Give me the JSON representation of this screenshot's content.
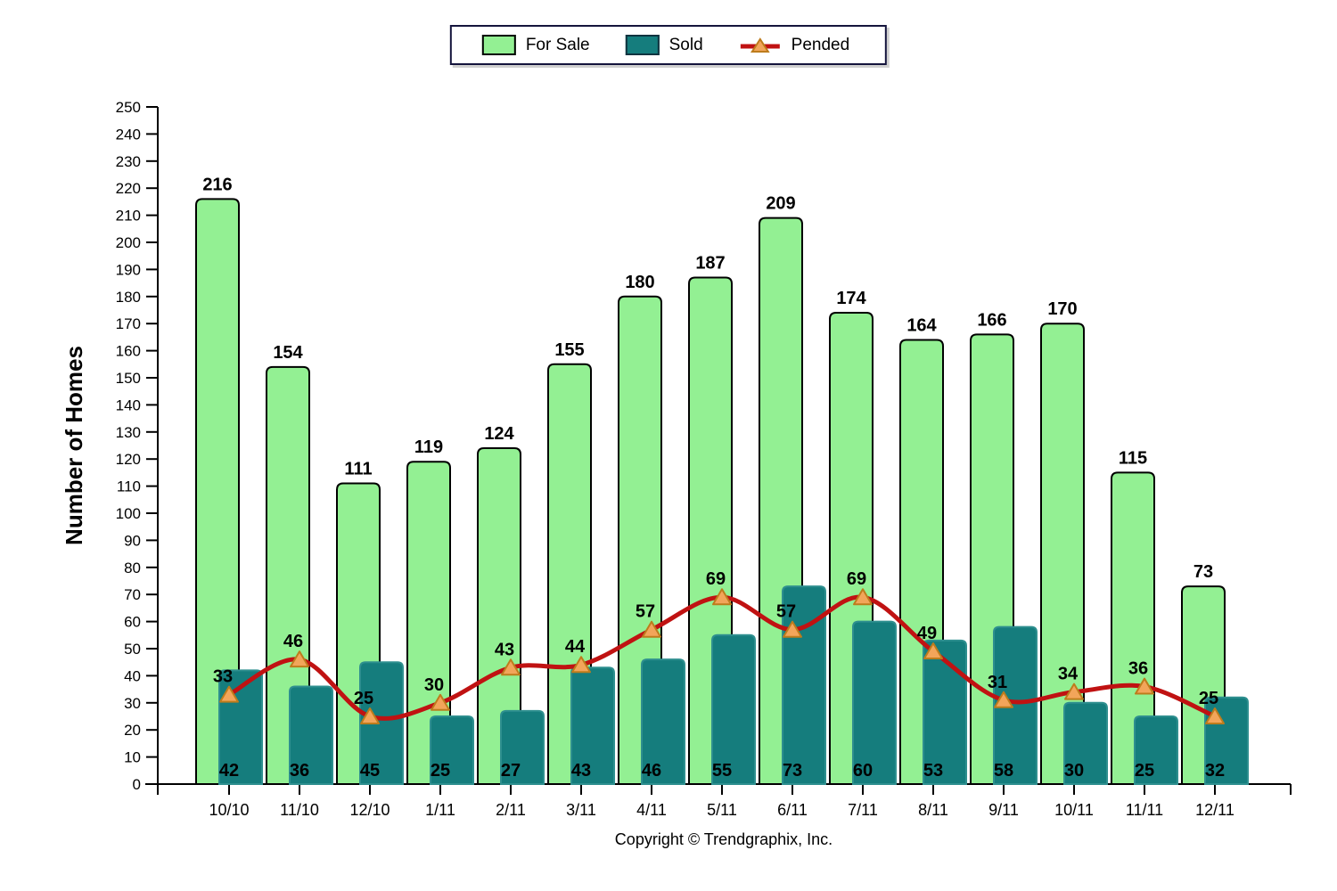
{
  "legend": {
    "for_sale_label": "For Sale",
    "sold_label": "Sold",
    "pended_label": "Pended"
  },
  "y_axis_title": "Number of Homes",
  "copyright": "Copyright © Trendgraphix, Inc.",
  "colors": {
    "for_sale_fill": "#93f093",
    "for_sale_border": "#000000",
    "sold_fill": "#157d7d",
    "sold_border": "#2e8f8f",
    "pended_line": "#c01212",
    "pended_marker_fill": "#f2a55a",
    "pended_marker_border": "#bd7c1c",
    "axis": "#000000",
    "legend_border": "#14143c"
  },
  "chart_data": {
    "type": "bar",
    "categories": [
      "10/10",
      "11/10",
      "12/10",
      "1/11",
      "2/11",
      "3/11",
      "4/11",
      "5/11",
      "6/11",
      "7/11",
      "8/11",
      "9/11",
      "10/11",
      "11/11",
      "12/11"
    ],
    "series": [
      {
        "name": "For Sale",
        "type": "bar",
        "values": [
          216,
          154,
          111,
          119,
          124,
          155,
          180,
          187,
          209,
          174,
          164,
          166,
          170,
          115,
          73
        ]
      },
      {
        "name": "Sold",
        "type": "bar",
        "values": [
          42,
          36,
          45,
          25,
          27,
          43,
          46,
          55,
          73,
          60,
          53,
          58,
          30,
          25,
          32
        ]
      },
      {
        "name": "Pended",
        "type": "line",
        "values": [
          33,
          46,
          25,
          30,
          43,
          44,
          57,
          69,
          57,
          69,
          49,
          31,
          34,
          36,
          25
        ]
      }
    ],
    "title": "",
    "xlabel": "",
    "ylabel": "Number of Homes",
    "ylim": [
      0,
      250
    ],
    "ytick_step": 10,
    "grid": false,
    "legend_position": "top-center",
    "value_labels": true
  }
}
